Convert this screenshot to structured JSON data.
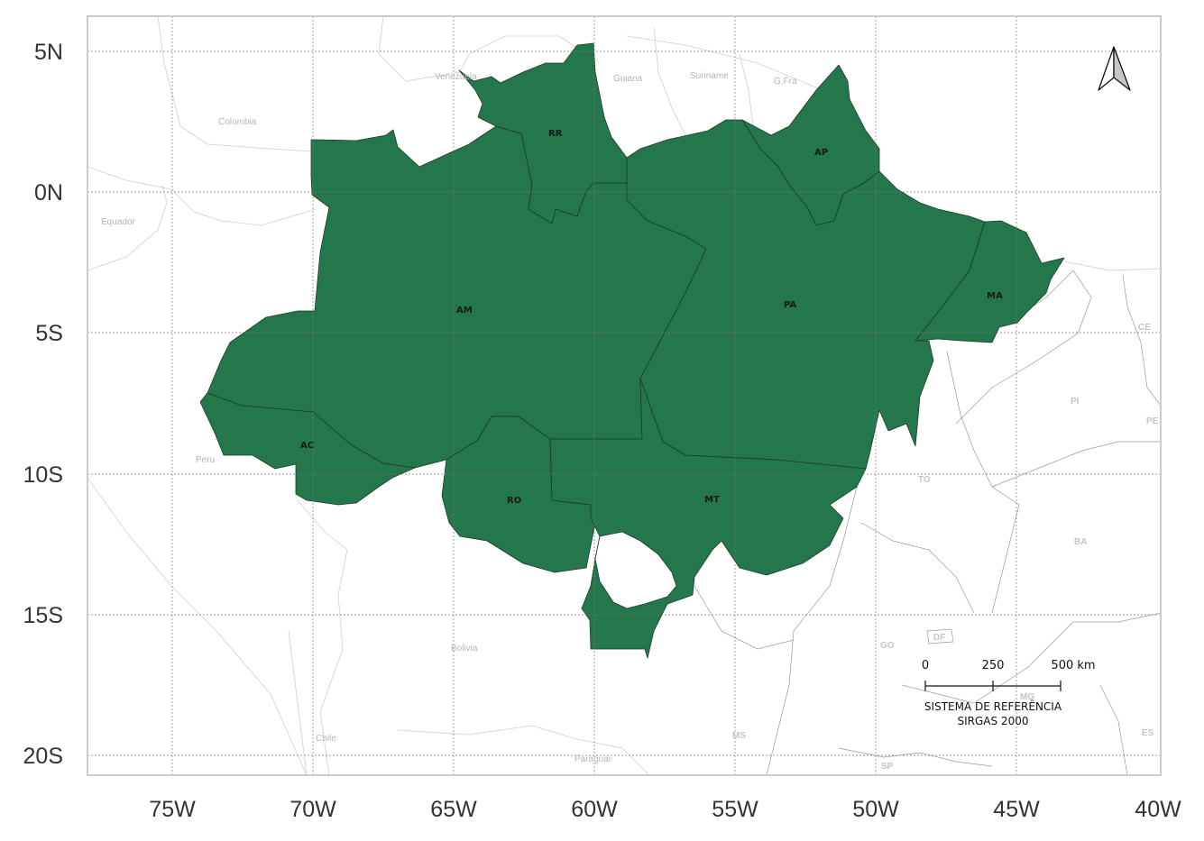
{
  "map": {
    "fill_color": "#24774a",
    "frame_color": "#cccccc",
    "grid_style": "dashed",
    "longitude_ticks": [
      "75W",
      "70W",
      "65W",
      "60W",
      "55W",
      "50W",
      "45W",
      "40W"
    ],
    "latitude_ticks": [
      "5N",
      "0N",
      "5S",
      "10S",
      "15S",
      "20S"
    ],
    "countries": [
      "Colombia",
      "Venezuela",
      "Guiana",
      "Suriname",
      "G.Fra",
      "Equador",
      "Peru",
      "Bolivia",
      "Chile",
      "Paraguai"
    ],
    "neighbor_states": [
      "CE",
      "PI",
      "PE",
      "TO",
      "BA",
      "GO",
      "DF",
      "MG",
      "MS",
      "SP",
      "ES"
    ],
    "legal_amazon_states": [
      "RR",
      "AP",
      "AM",
      "PA",
      "MA",
      "AC",
      "RO",
      "MT"
    ],
    "north_arrow_icon": "north-arrow-icon",
    "scale_bar": {
      "ticks": [
        "0",
        "250",
        "500 km"
      ],
      "reference_line1": "SISTEMA DE REFERÊNCIA",
      "reference_line2": "SIRGAS 2000"
    }
  }
}
